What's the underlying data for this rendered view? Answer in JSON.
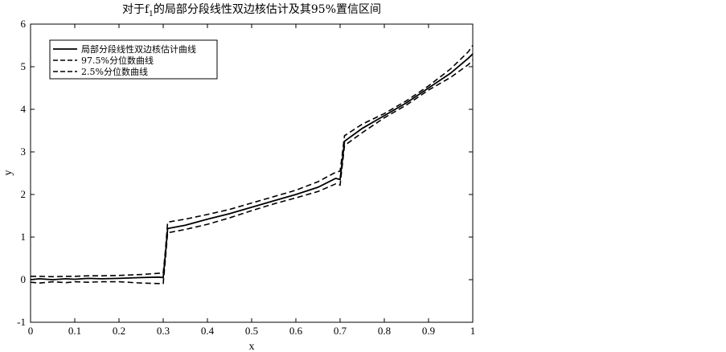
{
  "chart_data": {
    "type": "line",
    "title_prefix": "对于f",
    "title_sub": "1",
    "title_suffix": "的局部分段线性双边核估计及其95%置信区间",
    "xlabel": "x",
    "ylabel": "y",
    "xlim": [
      0,
      1
    ],
    "ylim": [
      -1,
      6
    ],
    "xticks": [
      "0",
      "0.1",
      "0.2",
      "0.3",
      "0.4",
      "0.5",
      "0.6",
      "0.7",
      "0.8",
      "0.9",
      "1"
    ],
    "yticks": [
      "-1",
      "0",
      "1",
      "2",
      "3",
      "4",
      "5",
      "6"
    ],
    "grid": false,
    "legend_position": "top-left",
    "series": [
      {
        "name": "局部分段线性双边核估计曲线",
        "style": "solid",
        "color": "#000000",
        "x": [
          0.0,
          0.02,
          0.05,
          0.08,
          0.1,
          0.13,
          0.16,
          0.2,
          0.25,
          0.29,
          0.3,
          0.305,
          0.31,
          0.35,
          0.4,
          0.45,
          0.5,
          0.55,
          0.6,
          0.65,
          0.69,
          0.7,
          0.705,
          0.71,
          0.75,
          0.8,
          0.85,
          0.9,
          0.95,
          0.99,
          1.0
        ],
        "y": [
          0.0,
          0.02,
          0.0,
          0.02,
          0.01,
          0.03,
          0.02,
          0.03,
          0.05,
          0.06,
          0.05,
          0.6,
          1.2,
          1.28,
          1.42,
          1.55,
          1.7,
          1.85,
          2.0,
          2.17,
          2.38,
          2.35,
          2.8,
          3.25,
          3.55,
          3.85,
          4.15,
          4.5,
          4.85,
          5.2,
          5.3
        ]
      },
      {
        "name": "97.5%分位数曲线",
        "style": "dashed",
        "color": "#000000",
        "x": [
          0.0,
          0.02,
          0.05,
          0.08,
          0.1,
          0.13,
          0.16,
          0.2,
          0.25,
          0.29,
          0.3,
          0.305,
          0.31,
          0.35,
          0.4,
          0.45,
          0.5,
          0.55,
          0.6,
          0.65,
          0.69,
          0.7,
          0.705,
          0.71,
          0.75,
          0.8,
          0.85,
          0.9,
          0.95,
          0.99,
          1.0
        ],
        "y": [
          0.08,
          0.08,
          0.07,
          0.08,
          0.08,
          0.09,
          0.09,
          0.1,
          0.12,
          0.15,
          0.15,
          0.7,
          1.35,
          1.42,
          1.53,
          1.65,
          1.8,
          1.95,
          2.1,
          2.3,
          2.52,
          2.55,
          2.95,
          3.38,
          3.65,
          3.9,
          4.2,
          4.55,
          4.95,
          5.35,
          5.5
        ]
      },
      {
        "name": "2.5%分位数曲线",
        "style": "dashed",
        "color": "#000000",
        "x": [
          0.0,
          0.02,
          0.05,
          0.08,
          0.1,
          0.13,
          0.16,
          0.2,
          0.25,
          0.29,
          0.3,
          0.305,
          0.31,
          0.35,
          0.4,
          0.45,
          0.5,
          0.55,
          0.6,
          0.65,
          0.69,
          0.7,
          0.705,
          0.71,
          0.75,
          0.8,
          0.85,
          0.9,
          0.95,
          0.99,
          1.0
        ],
        "y": [
          -0.06,
          -0.08,
          -0.05,
          -0.07,
          -0.05,
          -0.06,
          -0.05,
          -0.05,
          -0.08,
          -0.09,
          -0.09,
          0.5,
          1.1,
          1.18,
          1.3,
          1.45,
          1.62,
          1.78,
          1.92,
          2.07,
          2.25,
          2.22,
          2.7,
          3.15,
          3.45,
          3.8,
          4.1,
          4.45,
          4.75,
          5.05,
          5.15
        ]
      }
    ]
  }
}
